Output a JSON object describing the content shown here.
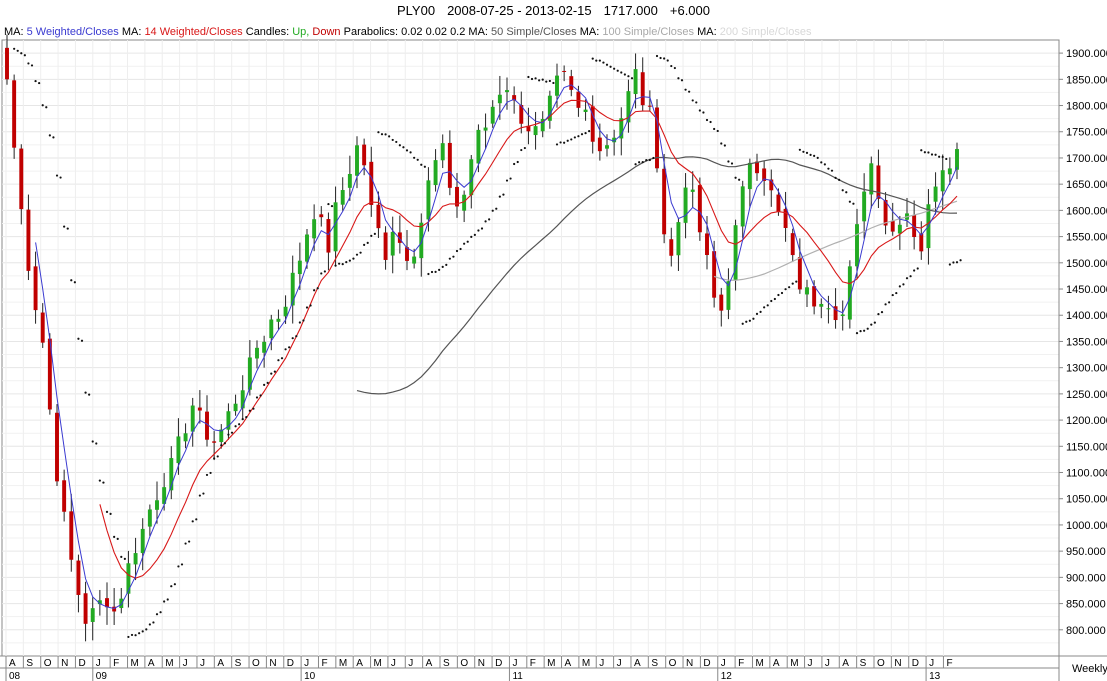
{
  "header": {
    "symbol": "PLY00",
    "range": "2008-07-25 - 2013-02-15",
    "last": "1717.000",
    "change": "+6.000"
  },
  "legend": [
    {
      "text": "MA:",
      "color": "#000000"
    },
    {
      "text": "5 Weighted/Closes",
      "color": "#3a3ad0"
    },
    {
      "text": "MA:",
      "color": "#000000"
    },
    {
      "text": "14 Weighted/Closes",
      "color": "#d81818"
    },
    {
      "text": "Candles:",
      "color": "#000000"
    },
    {
      "text": "Up,",
      "color": "#22aa22"
    },
    {
      "text": "Down",
      "color": "#c00000"
    },
    {
      "text": "Parabolics:",
      "color": "#000000"
    },
    {
      "text": "0.02",
      "color": "#000000"
    },
    {
      "text": "0.02",
      "color": "#000000"
    },
    {
      "text": "0.2",
      "color": "#000000"
    },
    {
      "text": "MA:",
      "color": "#000000"
    },
    {
      "text": "50 Simple/Closes",
      "color": "#555555"
    },
    {
      "text": "MA:",
      "color": "#000000"
    },
    {
      "text": "100 Simple/Closes",
      "color": "#a8a8a8"
    },
    {
      "text": "MA:",
      "color": "#000000"
    },
    {
      "text": "200 Simple/Closes",
      "color": "#d8d8d8"
    }
  ],
  "period": "Weekly",
  "colors": {
    "up": "#22aa22",
    "down": "#c00000",
    "ma5": "#3a3ad0",
    "ma14": "#d81818",
    "ma50": "#555555",
    "ma100": "#b0b0b0",
    "grid": "#e6e6e6"
  },
  "chart_data": {
    "type": "candlestick",
    "ylim": [
      750,
      1925
    ],
    "y_ticks": [
      "1900.000",
      "1850.000",
      "1800.000",
      "1750.000",
      "1700.000",
      "1650.000",
      "1600.000",
      "1550.000",
      "1500.000",
      "1450.000",
      "1400.000",
      "1350.000",
      "1300.000",
      "1250.000",
      "1200.000",
      "1150.000",
      "1100.000",
      "1050.000",
      "1000.000",
      "950.000",
      "900.000",
      "850.000",
      "800.000"
    ],
    "x_ticks": [
      "A",
      "S",
      "O",
      "N",
      "D",
      "J",
      "F",
      "M",
      "A",
      "M",
      "J",
      "J",
      "A",
      "S",
      "O",
      "N",
      "D",
      "J",
      "F",
      "M",
      "A",
      "M",
      "J",
      "J",
      "A",
      "S",
      "O",
      "N",
      "D",
      "J",
      "F",
      "M",
      "A",
      "M",
      "J",
      "J",
      "A",
      "S",
      "O",
      "N",
      "D",
      "J",
      "F",
      "M",
      "A",
      "M",
      "J",
      "J",
      "A",
      "S",
      "O",
      "N",
      "D",
      "J",
      "F"
    ],
    "year_labels": [
      "08",
      "09",
      "10",
      "11",
      "12",
      "13"
    ],
    "year_label_month_index": [
      0,
      5,
      17,
      29,
      41,
      53
    ],
    "keys": [
      [
        0,
        1850
      ],
      [
        1,
        1720
      ],
      [
        2,
        1600
      ],
      [
        3,
        1500
      ],
      [
        4,
        1420
      ],
      [
        5,
        1350
      ],
      [
        6,
        1220
      ],
      [
        7,
        1100
      ],
      [
        8,
        1010
      ],
      [
        9,
        930
      ],
      [
        10,
        870
      ],
      [
        11,
        820
      ],
      [
        12,
        830
      ],
      [
        13,
        850
      ],
      [
        14,
        860
      ],
      [
        15,
        835
      ],
      [
        16,
        870
      ],
      [
        17,
        920
      ],
      [
        18,
        960
      ],
      [
        19,
        990
      ],
      [
        20,
        1030
      ],
      [
        21,
        1060
      ],
      [
        22,
        1090
      ],
      [
        23,
        1110
      ],
      [
        24,
        1150
      ],
      [
        25,
        1190
      ],
      [
        26,
        1230
      ],
      [
        27,
        1200
      ],
      [
        28,
        1175
      ],
      [
        29,
        1160
      ],
      [
        30,
        1180
      ],
      [
        31,
        1210
      ],
      [
        32,
        1240
      ],
      [
        33,
        1270
      ],
      [
        34,
        1300
      ],
      [
        35,
        1340
      ],
      [
        36,
        1360
      ],
      [
        37,
        1390
      ],
      [
        38,
        1400
      ],
      [
        39,
        1430
      ],
      [
        40,
        1470
      ],
      [
        41,
        1510
      ],
      [
        42,
        1560
      ],
      [
        43,
        1600
      ],
      [
        44,
        1570
      ],
      [
        45,
        1530
      ],
      [
        46,
        1600
      ],
      [
        47,
        1640
      ],
      [
        48,
        1680
      ],
      [
        49,
        1720
      ],
      [
        50,
        1690
      ],
      [
        51,
        1600
      ],
      [
        52,
        1560
      ],
      [
        53,
        1520
      ],
      [
        54,
        1570
      ],
      [
        55,
        1540
      ],
      [
        56,
        1520
      ],
      [
        57,
        1530
      ],
      [
        58,
        1580
      ],
      [
        59,
        1650
      ],
      [
        60,
        1690
      ],
      [
        61,
        1710
      ],
      [
        62,
        1650
      ],
      [
        63,
        1610
      ],
      [
        64,
        1630
      ],
      [
        65,
        1700
      ],
      [
        66,
        1740
      ],
      [
        67,
        1760
      ],
      [
        68,
        1800
      ],
      [
        69,
        1830
      ],
      [
        70,
        1840
      ],
      [
        71,
        1800
      ],
      [
        72,
        1780
      ],
      [
        73,
        1760
      ],
      [
        74,
        1750
      ],
      [
        75,
        1760
      ],
      [
        76,
        1800
      ],
      [
        77,
        1840
      ],
      [
        78,
        1850
      ],
      [
        79,
        1820
      ],
      [
        80,
        1790
      ],
      [
        81,
        1790
      ],
      [
        82,
        1750
      ],
      [
        83,
        1720
      ],
      [
        84,
        1730
      ],
      [
        85,
        1750
      ],
      [
        86,
        1780
      ],
      [
        87,
        1820
      ],
      [
        88,
        1860
      ],
      [
        89,
        1810
      ],
      [
        90,
        1780
      ],
      [
        91,
        1700
      ],
      [
        92,
        1560
      ],
      [
        93,
        1510
      ],
      [
        94,
        1580
      ],
      [
        95,
        1660
      ],
      [
        96,
        1620
      ],
      [
        97,
        1560
      ],
      [
        98,
        1500
      ],
      [
        99,
        1430
      ],
      [
        100,
        1410
      ],
      [
        101,
        1480
      ],
      [
        102,
        1560
      ],
      [
        103,
        1630
      ],
      [
        104,
        1700
      ],
      [
        105,
        1690
      ],
      [
        106,
        1670
      ],
      [
        107,
        1630
      ],
      [
        108,
        1590
      ],
      [
        109,
        1560
      ],
      [
        110,
        1500
      ],
      [
        111,
        1460
      ],
      [
        112,
        1440
      ],
      [
        113,
        1430
      ],
      [
        114,
        1440
      ],
      [
        115,
        1430
      ],
      [
        116,
        1410
      ],
      [
        117,
        1400
      ],
      [
        118,
        1480
      ],
      [
        119,
        1560
      ],
      [
        120,
        1650
      ],
      [
        121,
        1690
      ],
      [
        122,
        1640
      ],
      [
        123,
        1580
      ],
      [
        124,
        1560
      ],
      [
        125,
        1590
      ],
      [
        126,
        1600
      ],
      [
        127,
        1560
      ],
      [
        128,
        1530
      ],
      [
        129,
        1600
      ],
      [
        130,
        1660
      ],
      [
        131,
        1690
      ],
      [
        132,
        1700
      ],
      [
        133,
        1717
      ]
    ],
    "series": [
      {
        "name": "5 Weighted/Closes",
        "values_from": "weekly closes"
      },
      {
        "name": "14 Weighted/Closes",
        "values_from": "weekly closes"
      },
      {
        "name": "50 Simple/Closes",
        "values_from": "weekly closes"
      },
      {
        "name": "100 Simple/Closes",
        "values_from": "weekly closes"
      }
    ]
  }
}
